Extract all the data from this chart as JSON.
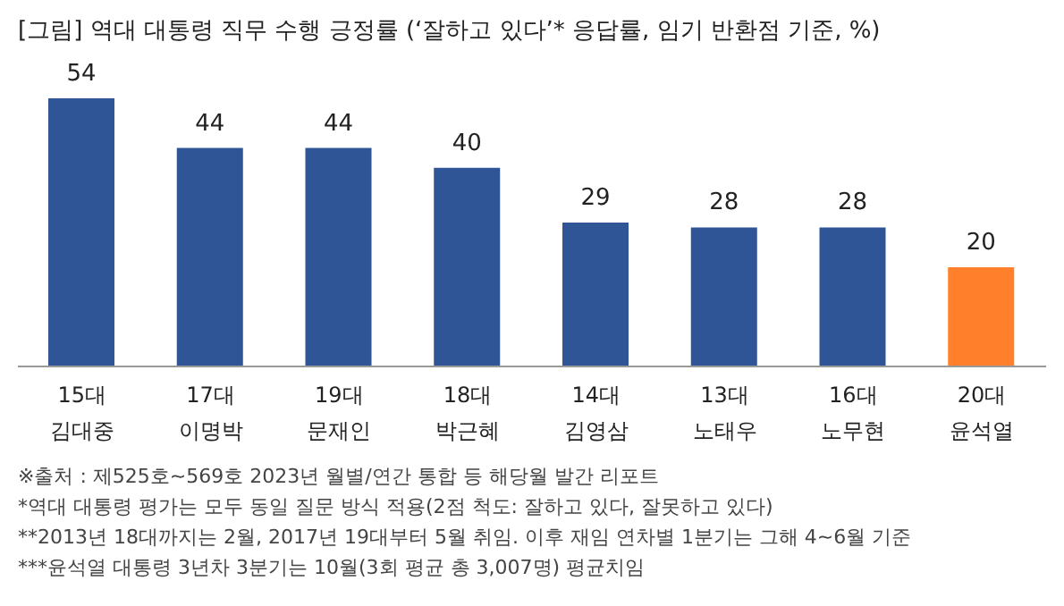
{
  "chart_data": {
    "type": "bar",
    "title": "[그림] 역대 대통령 직무 수행 긍정률 (‘잘하고 있다’* 응답률, 임기 반환점 기준, %)",
    "categories": [
      "15대\n김대중",
      "17대\n이명박",
      "19대\n문재인",
      "18대\n박근혜",
      "14대\n김영삼",
      "13대\n노태우",
      "16대\n노무현",
      "20대\n윤석열"
    ],
    "values": [
      54,
      44,
      44,
      40,
      29,
      28,
      28,
      20
    ],
    "colors": [
      "#2f5597",
      "#2f5597",
      "#2f5597",
      "#2f5597",
      "#2f5597",
      "#2f5597",
      "#2f5597",
      "#ff7f2a"
    ],
    "data_labels": true,
    "tick_labels": "x",
    "annotations": [
      "※출처 : 제525호~569호 2023년 월별/연간 통합 등 해당월 발간 리포트",
      "*역대 대통령 평가는 모두 동일 질문 방식 적용(2점 척도: 잘하고 있다, 잘못하고 있다)",
      "**2013년 18대까지는 2월, 2017년 19대부터 5월 취임. 이후 재임 연차별 1분기는 그해 4~6월 기준",
      "***윤석열 대통령 3년차 3분기는 10월(3회 평균 총 3,007명) 평균치임"
    ]
  }
}
